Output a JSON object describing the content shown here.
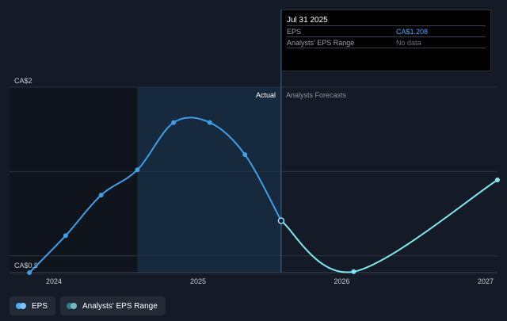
{
  "chart_data": {
    "type": "line",
    "y_top_label": "CA$2",
    "y_bottom_label": "CA$0.9",
    "ylim": [
      0.9,
      2.0
    ],
    "x_ticks": [
      "2024",
      "2025",
      "2026",
      "2027"
    ],
    "actual_label": "Actual",
    "forecast_label": "Analysts Forecasts",
    "grid": true,
    "series": [
      {
        "name": "EPS",
        "points": [
          {
            "date": "2023-10-31",
            "eps": 0.9
          },
          {
            "date": "2024-01-31",
            "eps": 1.12
          },
          {
            "date": "2024-04-30",
            "eps": 1.36
          },
          {
            "date": "2024-07-31",
            "eps": 1.51
          },
          {
            "date": "2024-10-31",
            "eps": 1.79
          },
          {
            "date": "2025-01-31",
            "eps": 1.79
          },
          {
            "date": "2025-04-30",
            "eps": 1.6
          },
          {
            "date": "2025-07-31",
            "eps": 1.208
          }
        ]
      },
      {
        "name": "Analysts Forecasts",
        "points": [
          {
            "date": "2025-07-31",
            "eps": 1.208
          },
          {
            "date": "2026-01-31",
            "eps": 0.906
          },
          {
            "date": "2027-01-31",
            "eps": 1.45
          }
        ]
      }
    ],
    "highlight_range": [
      "2024-07-31",
      "2025-07-31"
    ]
  },
  "tooltip": {
    "date": "Jul 31 2025",
    "rows": [
      {
        "label": "EPS",
        "value": "CA$1.208"
      },
      {
        "label": "Analysts' EPS Range",
        "value": "No data"
      }
    ]
  },
  "legend": [
    {
      "label": "EPS"
    },
    {
      "label": "Analysts' EPS Range"
    }
  ],
  "colors": {
    "background": "#151b26",
    "past_shade": "#10141c",
    "highlight": "#16293d",
    "eps_line": "#3d9eea",
    "forecast_line": "#7de8f0",
    "grid": "#2a313c"
  }
}
